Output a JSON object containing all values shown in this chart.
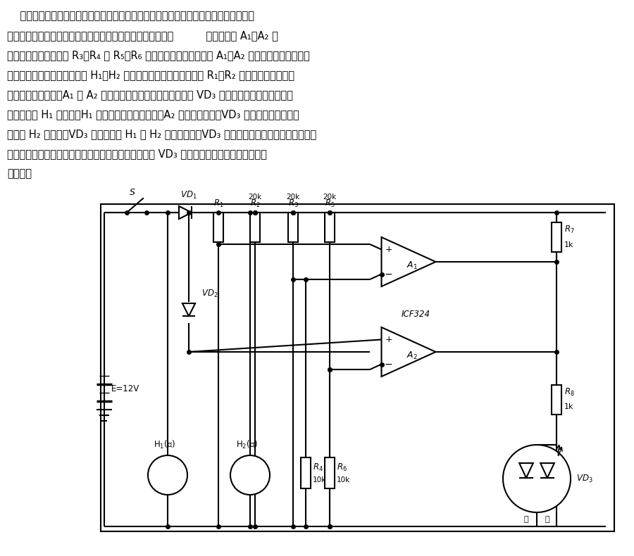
{
  "background_color": "#ffffff",
  "line_color": "#000000",
  "text_lines": [
    "    汽车尾部的刹车灯出现故障时，司机往往并不知道。汽车刹车灯故障监示仪可帮助司机",
    "随时了解刹车灯是否损坏。汽车刹车灯故障监示器的电路如图          所示。运放 A₁、A₂ 组",
    "成两个电压比较器，由 R₃、R₄ 及 R₅、R₆ 分压取得的基准电压加在 A₁、A₂ 的反相输入端，检测信",
    "号加在同相输入端。当刹车灯 H₁、H₂ 没有损坏时，其阻値很小，因 R₁、R₂ 阻値很大，此时检测",
    "信号小于基准电压，A₁ 和 A₂ 输出均为低电平，变色发光二极管 VD₃ 不发光，表明刹车灯正常。",
    "当左刹车灯 H₁ 损坏时，H₁ 检测信号大于基准电压，A₂ 将输出高电平，VD₃ 发红光；同理，当右",
    "刹车灯 H₂ 损坏时，VD₃ 发维光；若 H₁ 和 H₂ 同时损坏时，VD₃ 中的红、维发光二极管均发光，经",
    "混色发出黄光。由此可知，在不刹车时，司机便能通过 VD₃ 的发光颜色随时了解刹车灯是否",
    "有故障。"
  ]
}
